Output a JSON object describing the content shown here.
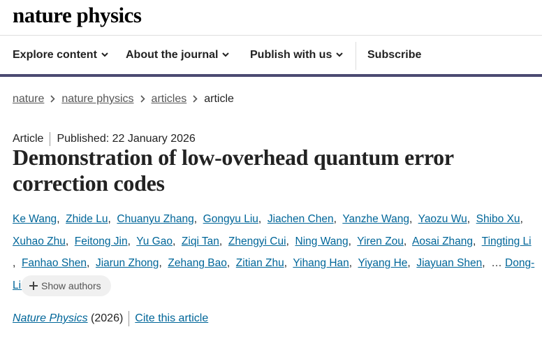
{
  "header": {
    "logo": "nature physics",
    "nav": [
      "Explore content",
      "About the journal",
      "Publish with us"
    ],
    "subscribe": "Subscribe"
  },
  "breadcrumbs": [
    "nature",
    "nature physics",
    "articles",
    "article"
  ],
  "article": {
    "type": "Article",
    "published": "Published: 22 January 2026",
    "title": "Demonstration of low-overhead quantum error correction codes",
    "authors": [
      "Ke Wang",
      "Zhide Lu",
      "Chuanyu Zhang",
      "Gongyu Liu",
      "Jiachen Chen",
      "Yanzhe Wang",
      "Yaozu Wu",
      "Shibo Xu",
      "Xuhao Zhu",
      "Feitong Jin",
      "Yu Gao",
      "Ziqi Tan",
      "Zhengyi Cui",
      "Ning Wang",
      "Yiren Zou",
      "Aosai Zhang",
      "Tingting Li",
      "Fanhao Shen",
      "Jiarun Zhong",
      "Zehang Bao",
      "Zitian Zhu",
      "Yihang Han",
      "Yiyang He",
      "Jiayuan Shen"
    ],
    "ellipsis": "…",
    "corresponding_author": "Dong-Ling Deng",
    "show_authors": "Show authors",
    "citation": {
      "journal": "Nature Physics",
      "year": "(2026)",
      "cite": "Cite this article"
    }
  }
}
